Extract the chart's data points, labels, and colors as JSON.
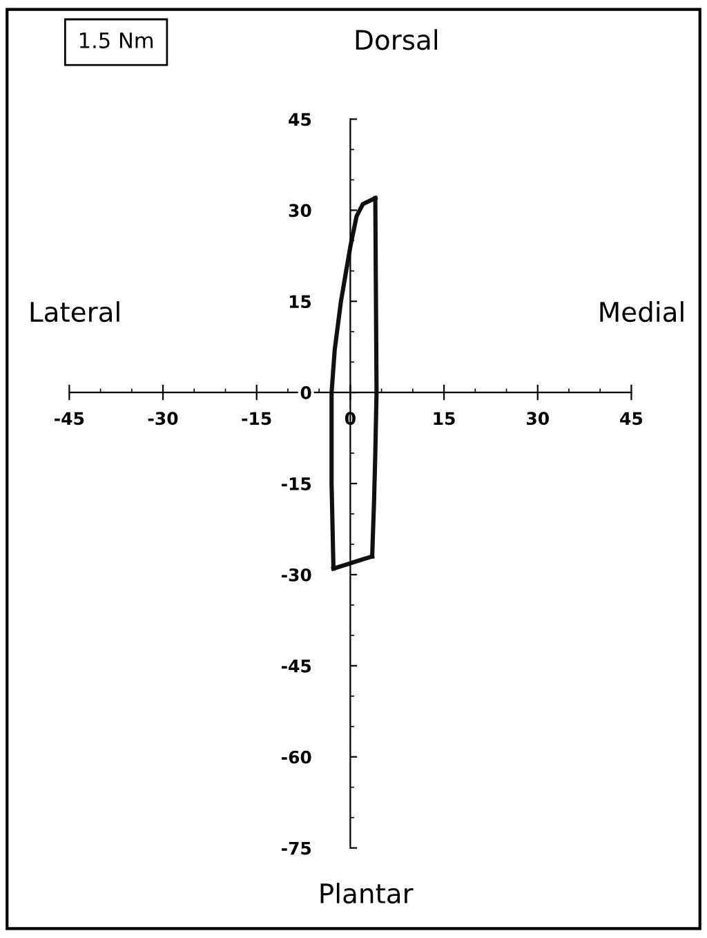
{
  "chart_data": {
    "type": "line",
    "annotations": [
      "1.5 Nm",
      "Dorsal",
      "Plantar",
      "Lateral",
      "Medial"
    ],
    "series": [
      {
        "color": "#111111",
        "x": [
          3.5,
          3.8,
          4,
          4.2,
          4
        ],
        "values": [
          -27,
          -18,
          -10,
          0,
          32
        ]
      },
      {
        "color": "#111111",
        "x": [
          -2.7,
          3.5
        ],
        "values": [
          -29,
          -27
        ]
      },
      {
        "color": "#111111",
        "x": [
          -2.7,
          -3,
          -3,
          -2.5,
          -1.5,
          0,
          1,
          2,
          4
        ],
        "values": [
          -29,
          -15,
          0,
          7,
          15,
          24,
          29,
          31,
          32
        ]
      }
    ],
    "xlim": [
      -45,
      45
    ],
    "ylim": [
      -75,
      45
    ],
    "xticks": [
      -45,
      -30,
      -15,
      0,
      15,
      30,
      45
    ],
    "yticks": [
      -75,
      -60,
      -45,
      -30,
      -15,
      0,
      15,
      30,
      45
    ],
    "grid": false,
    "marker": "none",
    "line_style": "solid"
  }
}
